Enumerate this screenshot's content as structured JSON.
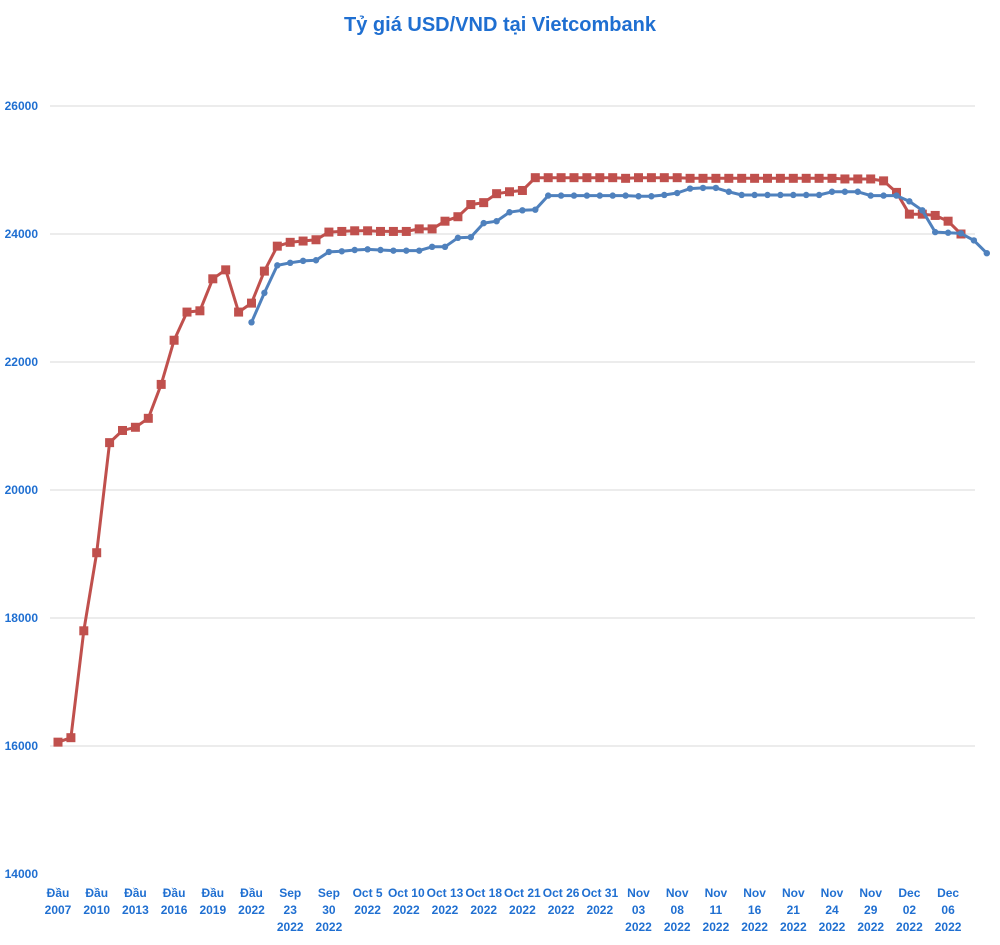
{
  "chart_data": {
    "type": "line",
    "title": "Tỷ giá USD/VND tại Vietcombank",
    "ylim": [
      14000,
      26000
    ],
    "yticks": [
      14000,
      16000,
      18000,
      20000,
      22000,
      24000,
      26000
    ],
    "grid": true,
    "colors": {
      "title": "#1f6fd1",
      "labels": "#1f6fd1",
      "series_red": "#c0504d",
      "series_blue": "#4f81bd",
      "grid": "#d9d9d9"
    },
    "x_labels": [
      {
        "i": 0,
        "lines": [
          "Đầu",
          "2007"
        ]
      },
      {
        "i": 3,
        "lines": [
          "Đầu",
          "2010"
        ]
      },
      {
        "i": 6,
        "lines": [
          "Đầu",
          "2013"
        ]
      },
      {
        "i": 9,
        "lines": [
          "Đầu",
          "2016"
        ]
      },
      {
        "i": 12,
        "lines": [
          "Đầu",
          "2019"
        ]
      },
      {
        "i": 15,
        "lines": [
          "Đầu",
          "2022"
        ]
      },
      {
        "i": 18,
        "lines": [
          "Sep",
          "23",
          "2022"
        ]
      },
      {
        "i": 21,
        "lines": [
          "Sep",
          "30",
          "2022"
        ]
      },
      {
        "i": 24,
        "lines": [
          "Oct 5",
          "2022"
        ]
      },
      {
        "i": 27,
        "lines": [
          "Oct 10",
          "2022"
        ]
      },
      {
        "i": 30,
        "lines": [
          "Oct 13",
          "2022"
        ]
      },
      {
        "i": 33,
        "lines": [
          "Oct 18",
          "2022"
        ]
      },
      {
        "i": 36,
        "lines": [
          "Oct 21",
          "2022"
        ]
      },
      {
        "i": 39,
        "lines": [
          "Oct 26",
          "2022"
        ]
      },
      {
        "i": 42,
        "lines": [
          "Oct 31",
          "2022"
        ]
      },
      {
        "i": 45,
        "lines": [
          "Nov",
          "03",
          "2022"
        ]
      },
      {
        "i": 48,
        "lines": [
          "Nov",
          "08",
          "2022"
        ]
      },
      {
        "i": 51,
        "lines": [
          "Nov",
          "11",
          "2022"
        ]
      },
      {
        "i": 54,
        "lines": [
          "Nov",
          "16",
          "2022"
        ]
      },
      {
        "i": 57,
        "lines": [
          "Nov",
          "21",
          "2022"
        ]
      },
      {
        "i": 60,
        "lines": [
          "Nov",
          "24",
          "2022"
        ]
      },
      {
        "i": 63,
        "lines": [
          "Nov",
          "29",
          "2022"
        ]
      },
      {
        "i": 66,
        "lines": [
          "Dec",
          "02",
          "2022"
        ]
      },
      {
        "i": 69,
        "lines": [
          "Dec",
          "06",
          "2022"
        ]
      }
    ],
    "series": [
      {
        "values": [
          16060,
          16130,
          17800,
          19020,
          20740,
          20930,
          20980,
          21120,
          21650,
          22340,
          22780,
          22800,
          23300,
          23440,
          22780,
          22920,
          23420,
          23810,
          23870,
          23890,
          23910,
          24030,
          24040,
          24050,
          24050,
          24040,
          24040,
          24040,
          24080,
          24080,
          24200,
          24270,
          24460,
          24490,
          24630,
          24660,
          24680,
          24880,
          24880,
          24880,
          24880,
          24880,
          24880,
          24880,
          24870,
          24880,
          24880,
          24880,
          24880,
          24870,
          24870,
          24870,
          24870,
          24870,
          24870,
          24870,
          24870,
          24870,
          24870,
          24870,
          24870,
          24860,
          24860,
          24860,
          24830,
          24650,
          24310,
          24310,
          24290,
          24200,
          24000
        ]
      },
      {
        "start": 15,
        "values": [
          22620,
          23080,
          23510,
          23550,
          23580,
          23590,
          23720,
          23730,
          23750,
          23760,
          23750,
          23740,
          23740,
          23740,
          23800,
          23800,
          23940,
          23950,
          24170,
          24200,
          24340,
          24370,
          24380,
          24600,
          24600,
          24600,
          24600,
          24600,
          24600,
          24600,
          24590,
          24590,
          24610,
          24640,
          24710,
          24720,
          24720,
          24660,
          24610,
          24610,
          24610,
          24610,
          24610,
          24610,
          24610,
          24660,
          24660,
          24660,
          24600,
          24600,
          24600,
          24510,
          24370,
          24030,
          24020,
          24010,
          23900,
          23700
        ]
      }
    ]
  }
}
